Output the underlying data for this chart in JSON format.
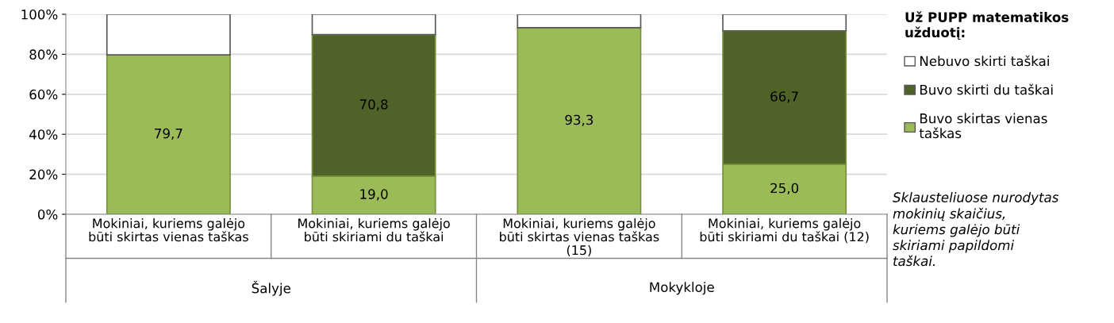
{
  "chart_data": {
    "type": "bar",
    "stacked": true,
    "categories": [
      "Mokiniai, kuriems galėjo\nbūti skirtas vienas taškas",
      "Mokiniai, kuriems galėjo\nbūti skiriami du taškai",
      "Mokiniai, kuriems galėjo\nbūti skirtas vienas taškas\n(15)",
      "Mokiniai, kuriems galėjo\nbūti skiriami du taškai (12)"
    ],
    "series": [
      {
        "name": "Buvo skirtas vienas\ntaškas",
        "color": "#9bbb59",
        "values": [
          79.7,
          19.0,
          93.3,
          25.0
        ],
        "value_labels": [
          "79,7",
          "19,0",
          "93,3",
          "25,0"
        ]
      },
      {
        "name": "Buvo skirti du taškai",
        "color": "#4f6228",
        "values": [
          null,
          70.8,
          null,
          66.7
        ],
        "value_labels": [
          null,
          "70,8",
          null,
          "66,7"
        ]
      },
      {
        "name": "Nebuvo skirti taškai",
        "color": "#ffffff",
        "values": [
          20.3,
          10.2,
          6.7,
          8.3
        ]
      }
    ],
    "legend_title": "Už PUPP matematikos\nužduotį:",
    "legend": "right",
    "ylim": [
      0,
      100
    ],
    "yticks": [
      {
        "value": 0,
        "label": "0%"
      },
      {
        "value": 20,
        "label": "20%"
      },
      {
        "value": 40,
        "label": "40%"
      },
      {
        "value": 60,
        "label": "60%"
      },
      {
        "value": 80,
        "label": "80%"
      },
      {
        "value": 100,
        "label": "100%"
      }
    ],
    "grid": "y",
    "annotations": [
      "Šalyje",
      "Mokykloje",
      "Sklausteliuose nurodytas\nmokinių skaičius,\nkuriems galėjo būti\nskiriami papildomi\ntaškai."
    ]
  }
}
